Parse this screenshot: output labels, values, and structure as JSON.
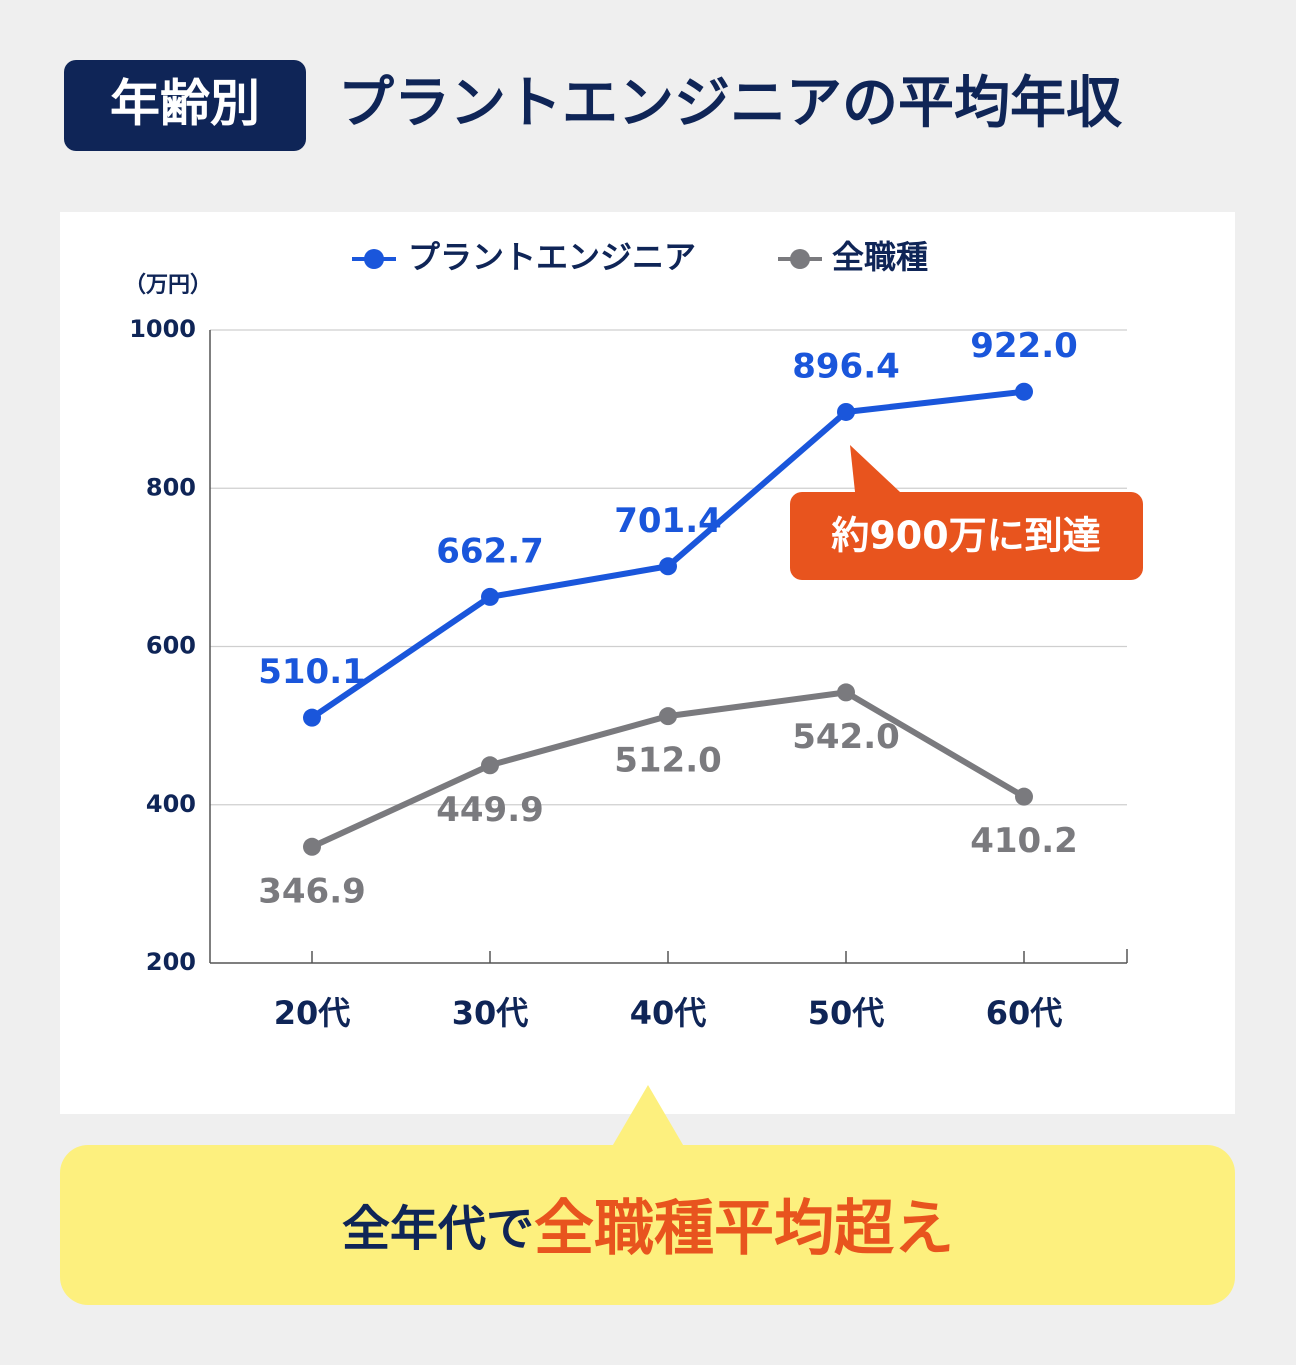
{
  "chart_data": {
    "type": "line",
    "badge": "年齢別",
    "title": "プラントエンジニアの平均年収",
    "y_unit": "（万円）",
    "categories": [
      "20代",
      "30代",
      "40代",
      "50代",
      "60代"
    ],
    "series": [
      {
        "name": "プラントエンジニア",
        "color": "#1a56db",
        "values": [
          510.1,
          662.7,
          701.4,
          896.4,
          922.0
        ],
        "value_labels": [
          "510.1",
          "662.7",
          "701.4",
          "896.4",
          "922.0"
        ]
      },
      {
        "name": "全職種",
        "color": "#7a7a7e",
        "values": [
          346.9,
          449.9,
          512.0,
          542.0,
          410.2
        ],
        "value_labels": [
          "346.9",
          "449.9",
          "512.0",
          "542.0",
          "410.2"
        ]
      }
    ],
    "ylim": [
      200,
      1000
    ],
    "yticks": [
      200,
      400,
      600,
      800,
      1000
    ],
    "grid": true,
    "annotation": "約900万に到達",
    "callout_lead": "全年代で",
    "callout_emphasis": "全職種平均超え"
  }
}
